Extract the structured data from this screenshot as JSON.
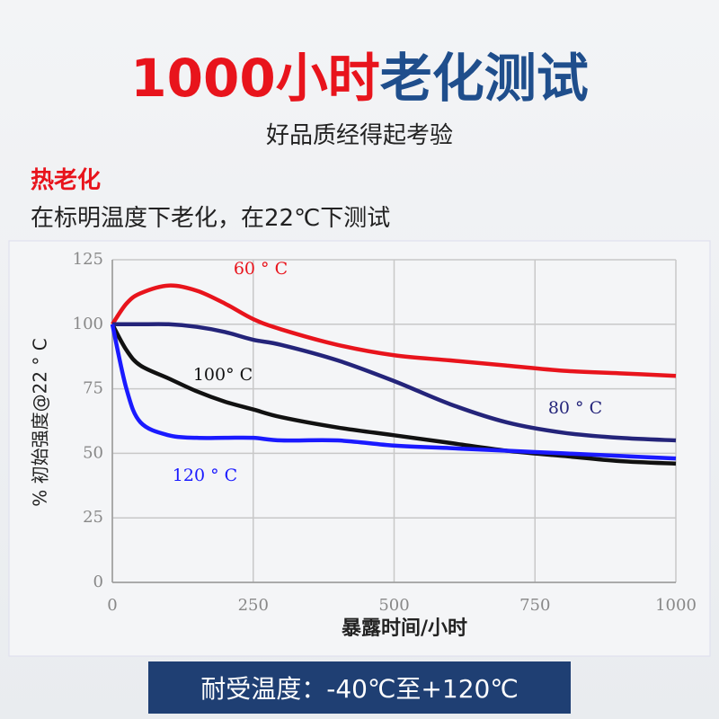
{
  "header": {
    "title_lead": "1000小时",
    "title_rest": "老化测试",
    "subtitle": "好品质经得起考验"
  },
  "section": {
    "label": "热老化",
    "description": "在标明温度下老化，在22℃下测试"
  },
  "chart_data": {
    "type": "line",
    "x_label": "暴露时间/小时",
    "y_label": "% 初始强度@22 ° C",
    "x": [
      0,
      25,
      50,
      100,
      150,
      200,
      250,
      300,
      400,
      500,
      600,
      700,
      800,
      900,
      1000
    ],
    "series": [
      {
        "name": "60 ° C",
        "color": "#e8141c",
        "values": [
          100,
          108,
          112,
          115,
          113,
          108,
          102,
          98,
          92,
          88,
          86,
          84,
          82,
          81,
          80
        ]
      },
      {
        "name": "100° C",
        "color": "#111111",
        "values": [
          100,
          90,
          84,
          79,
          74,
          70,
          67,
          64,
          60,
          57,
          54,
          51,
          49,
          47,
          46
        ]
      },
      {
        "name": "80 ° C",
        "color": "#24247a",
        "values": [
          100,
          100,
          100,
          100,
          99,
          97,
          94,
          92,
          86,
          78,
          69,
          62,
          58,
          56,
          55
        ]
      },
      {
        "name": "120 ° C",
        "color": "#1a1aff",
        "values": [
          100,
          75,
          62,
          57,
          56,
          56,
          56,
          55,
          55,
          53,
          52,
          51,
          50,
          49,
          48
        ]
      }
    ],
    "xlim": [
      0,
      1000
    ],
    "xticks": [
      0,
      250,
      500,
      750,
      1000
    ],
    "ylim": [
      0,
      125
    ],
    "yticks": [
      0,
      25,
      50,
      75,
      100,
      125
    ],
    "grid": true
  },
  "footer": {
    "text": "耐受温度：-40℃至+120℃"
  }
}
